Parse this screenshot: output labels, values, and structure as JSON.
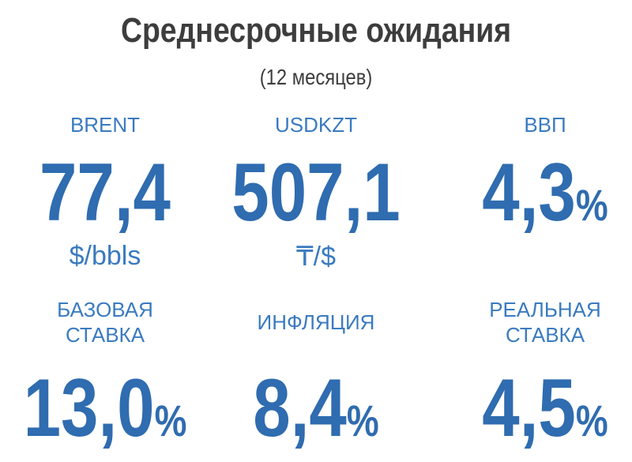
{
  "header": {
    "title": "Среднесрочные ожидания",
    "subtitle": "(12 месяцев)"
  },
  "items": [
    {
      "label": "BRENT",
      "value": "77,4",
      "unit": "$/bbls"
    },
    {
      "label": "USDKZT",
      "value": "507,1",
      "unit": "₸/$"
    },
    {
      "label": "ВВП",
      "value": "4,3",
      "suffix": "%"
    },
    {
      "label": "БАЗОВАЯ СТАВКА",
      "value": "13,0",
      "suffix": "%"
    },
    {
      "label": "ИНФЛЯЦИЯ",
      "value": "8,4",
      "suffix": "%"
    },
    {
      "label": "РЕАЛЬНАЯ СТАВКА",
      "value": "4,5",
      "suffix": "%"
    }
  ]
}
